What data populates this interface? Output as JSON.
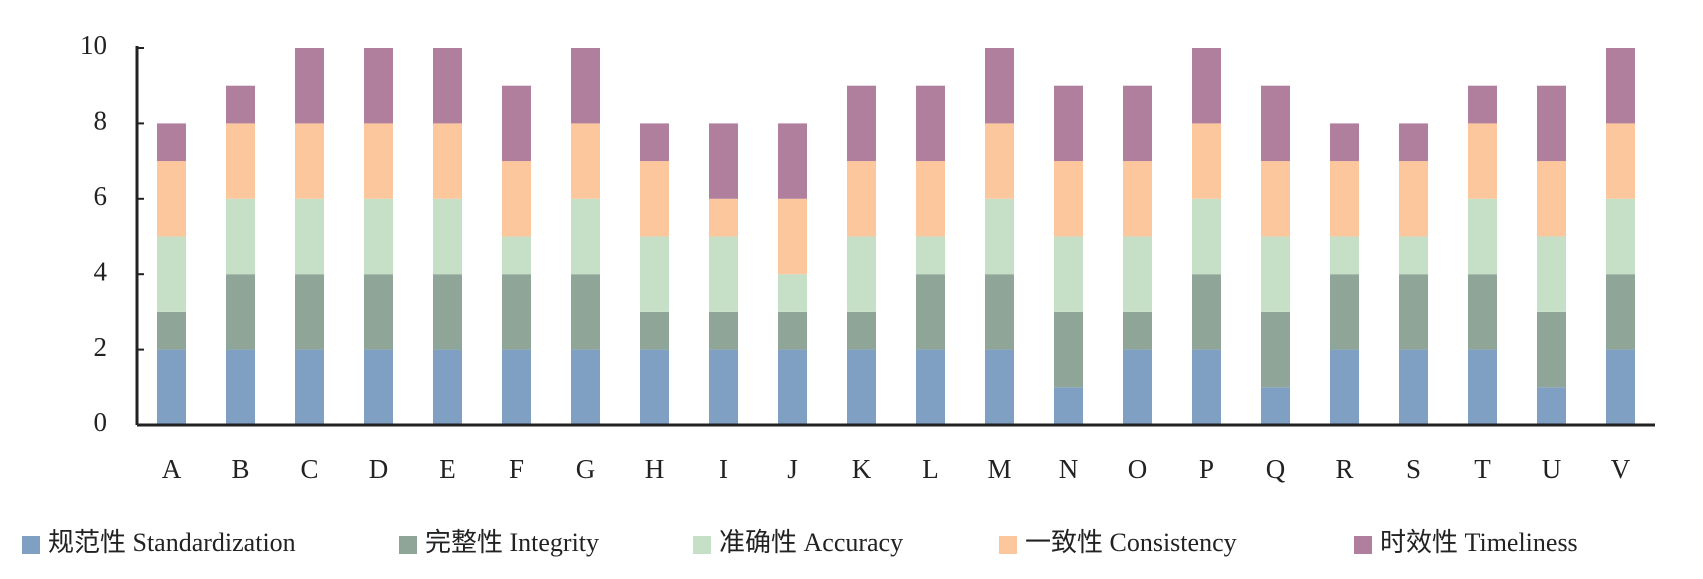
{
  "chart_data": {
    "type": "stacked_bar",
    "categories": [
      "A",
      "B",
      "C",
      "D",
      "E",
      "F",
      "G",
      "H",
      "I",
      "J",
      "K",
      "L",
      "M",
      "N",
      "O",
      "P",
      "Q",
      "R",
      "S",
      "T",
      "U",
      "V"
    ],
    "series": [
      {
        "name": "规范性 Standardization",
        "color": "#7f9fc3",
        "values": [
          2,
          2,
          2,
          2,
          2,
          2,
          2,
          2,
          2,
          2,
          2,
          2,
          2,
          1,
          2,
          2,
          1,
          2,
          2,
          2,
          1,
          2
        ]
      },
      {
        "name": "完整性 Integrity",
        "color": "#8fa598",
        "values": [
          1,
          2,
          2,
          2,
          2,
          2,
          2,
          1,
          1,
          1,
          1,
          2,
          2,
          2,
          1,
          2,
          2,
          2,
          2,
          2,
          2,
          2
        ]
      },
      {
        "name": "准确性 Accuracy",
        "color": "#c6e0c8",
        "values": [
          2,
          2,
          2,
          2,
          2,
          1,
          2,
          2,
          2,
          1,
          2,
          1,
          2,
          2,
          2,
          2,
          2,
          1,
          1,
          2,
          2,
          2
        ]
      },
      {
        "name": "一致性 Consistency",
        "color": "#fcc79c",
        "values": [
          2,
          2,
          2,
          2,
          2,
          2,
          2,
          2,
          1,
          2,
          2,
          2,
          2,
          2,
          2,
          2,
          2,
          2,
          2,
          2,
          2,
          2
        ]
      },
      {
        "name": "时效性 Timeliness",
        "color": "#b07f9e",
        "values": [
          1,
          1,
          2,
          2,
          2,
          2,
          2,
          1,
          2,
          2,
          2,
          2,
          2,
          2,
          2,
          2,
          2,
          1,
          1,
          1,
          2,
          2
        ]
      }
    ],
    "ylim": [
      0,
      10
    ],
    "yticks": [
      0,
      2,
      4,
      6,
      8,
      10
    ],
    "grid": false
  }
}
